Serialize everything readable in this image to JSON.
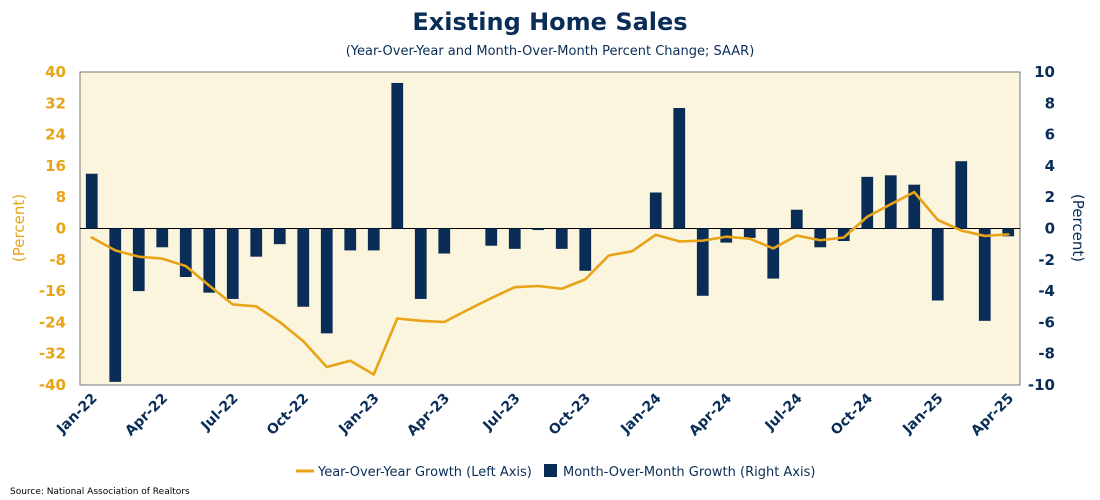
{
  "chart_data": {
    "type": "bar",
    "title": "Existing Home Sales",
    "subtitle": "(Year-Over-Year and Month-Over-Month Percent Change; SAAR)",
    "ylabel_left": "(Percent)",
    "ylabel_right": "(Percent)",
    "source": "Source: National Association of Realtors",
    "left_axis": {
      "ylim": [
        -40,
        40
      ],
      "ticks": [
        "40",
        "32",
        "24",
        "16",
        "8",
        "0",
        "-8",
        "-16",
        "-24",
        "-32",
        "-40"
      ]
    },
    "right_axis": {
      "ylim": [
        -10,
        10
      ],
      "ticks": [
        "10",
        "8",
        "6",
        "4",
        "2",
        "0",
        "-2",
        "-4",
        "-6",
        "-8",
        "-10"
      ]
    },
    "x": [
      "Jan-22",
      "Feb-22",
      "Mar-22",
      "Apr-22",
      "May-22",
      "Jun-22",
      "Jul-22",
      "Aug-22",
      "Sep-22",
      "Oct-22",
      "Nov-22",
      "Dec-22",
      "Jan-23",
      "Feb-23",
      "Mar-23",
      "Apr-23",
      "May-23",
      "Jun-23",
      "Jul-23",
      "Aug-23",
      "Sep-23",
      "Oct-23",
      "Nov-23",
      "Dec-23",
      "Jan-24",
      "Feb-24",
      "Mar-24",
      "Apr-24",
      "May-24",
      "Jun-24",
      "Jul-24",
      "Aug-24",
      "Sep-24",
      "Oct-24",
      "Nov-24",
      "Dec-24",
      "Jan-25",
      "Feb-25",
      "Mar-25",
      "Apr-25"
    ],
    "xtick_labels": [
      "Jan-22",
      "Apr-22",
      "Jul-22",
      "Oct-22",
      "Jan-23",
      "Apr-23",
      "Jul-23",
      "Oct-23",
      "Jan-24",
      "Apr-24",
      "Jul-24",
      "Oct-24",
      "Jan-25",
      "Apr-25"
    ],
    "xtick_indices": [
      0,
      3,
      6,
      9,
      12,
      15,
      18,
      21,
      24,
      27,
      30,
      33,
      36,
      39
    ],
    "series": [
      {
        "name": "Year-Over-Year Growth (Left Axis)",
        "axis": "left",
        "type": "line",
        "color": "#e8a317",
        "values": [
          -2.3,
          -5.6,
          -7.2,
          -7.7,
          -9.6,
          -14.6,
          -19.4,
          -19.9,
          -23.9,
          -28.8,
          -35.4,
          -33.8,
          -37.3,
          -23.0,
          -23.6,
          -23.9,
          -20.8,
          -17.8,
          -15.0,
          -14.7,
          -15.4,
          -13.0,
          -6.9,
          -5.8,
          -1.6,
          -3.3,
          -3.1,
          -2.1,
          -2.6,
          -5.1,
          -1.8,
          -3.0,
          -2.3,
          3.0,
          6.2,
          9.3,
          2.2,
          -0.5,
          -1.9,
          -1.5
        ]
      },
      {
        "name": "Month-Over-Month Growth (Right Axis)",
        "axis": "right",
        "type": "bar",
        "color": "#0a2d57",
        "values": [
          3.5,
          -9.8,
          -4.0,
          -1.2,
          -3.1,
          -4.1,
          -4.5,
          -1.8,
          -1.0,
          -5.0,
          -6.7,
          -1.4,
          -1.4,
          9.3,
          -4.5,
          -1.6,
          0.0,
          -1.1,
          -1.3,
          -0.1,
          -1.3,
          -2.7,
          0.0,
          0.0,
          2.3,
          7.7,
          -4.3,
          -0.9,
          -0.6,
          -3.2,
          1.2,
          -1.2,
          -0.8,
          3.3,
          3.4,
          2.8,
          -4.6,
          4.3,
          -5.9,
          -0.5
        ]
      }
    ],
    "grid": false,
    "legend_position": "bottom-center",
    "colors": {
      "plot_background": "#faf5dc",
      "navy": "#0a2d57",
      "gold": "#e8a317"
    }
  }
}
